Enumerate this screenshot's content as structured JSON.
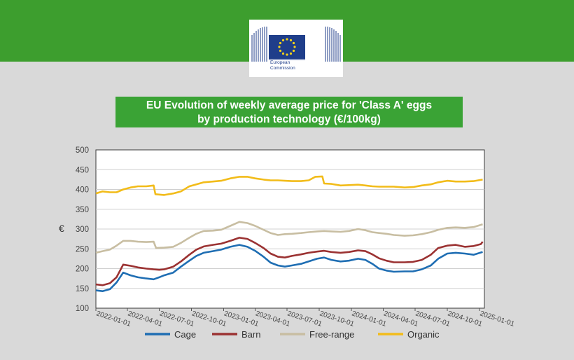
{
  "logo": {
    "line1": "European",
    "line2": "Commission"
  },
  "chart_data": {
    "type": "line",
    "title_line1": "EU Evolution of weekly average price for 'Class A' eggs",
    "title_line2": "by production technology (€/100kg)",
    "ylabel": "€",
    "ylim": [
      100,
      500
    ],
    "yticks": [
      100,
      150,
      200,
      250,
      300,
      350,
      400,
      450,
      500
    ],
    "xlim": [
      "2022-01-01",
      "2025-01-15"
    ],
    "xticks": [
      "2022-01-01",
      "2022-04-01",
      "2022-07-01",
      "2022-10-01",
      "2023-01-01",
      "2023-04-01",
      "2023-07-01",
      "2023-10-01",
      "2024-01-01",
      "2024-04-01",
      "2024-07-01",
      "2024-10-01",
      "2025-01-01"
    ],
    "grid": "horizontal",
    "legend_position": "bottom",
    "series": [
      {
        "name": "Cage",
        "color": "#1f6eb3",
        "points": [
          [
            "2022-01-01",
            145
          ],
          [
            "2022-01-20",
            143
          ],
          [
            "2022-02-10",
            148
          ],
          [
            "2022-03-01",
            165
          ],
          [
            "2022-03-20",
            190
          ],
          [
            "2022-04-10",
            183
          ],
          [
            "2022-05-01",
            178
          ],
          [
            "2022-05-25",
            175
          ],
          [
            "2022-06-15",
            173
          ],
          [
            "2022-07-01",
            178
          ],
          [
            "2022-07-15",
            183
          ],
          [
            "2022-08-10",
            190
          ],
          [
            "2022-09-01",
            205
          ],
          [
            "2022-09-25",
            220
          ],
          [
            "2022-10-15",
            232
          ],
          [
            "2022-11-05",
            240
          ],
          [
            "2022-12-01",
            244
          ],
          [
            "2022-12-25",
            248
          ],
          [
            "2023-01-20",
            255
          ],
          [
            "2023-02-15",
            260
          ],
          [
            "2023-03-10",
            255
          ],
          [
            "2023-04-01",
            245
          ],
          [
            "2023-04-25",
            230
          ],
          [
            "2023-05-15",
            215
          ],
          [
            "2023-06-05",
            208
          ],
          [
            "2023-06-25",
            205
          ],
          [
            "2023-07-15",
            208
          ],
          [
            "2023-08-10",
            212
          ],
          [
            "2023-09-01",
            218
          ],
          [
            "2023-09-25",
            225
          ],
          [
            "2023-10-15",
            228
          ],
          [
            "2023-11-05",
            222
          ],
          [
            "2023-12-01",
            218
          ],
          [
            "2023-12-25",
            220
          ],
          [
            "2024-01-20",
            225
          ],
          [
            "2024-02-10",
            222
          ],
          [
            "2024-03-01",
            212
          ],
          [
            "2024-03-20",
            200
          ],
          [
            "2024-04-10",
            195
          ],
          [
            "2024-05-01",
            192
          ],
          [
            "2024-06-01",
            193
          ],
          [
            "2024-06-25",
            193
          ],
          [
            "2024-07-20",
            198
          ],
          [
            "2024-08-15",
            208
          ],
          [
            "2024-09-05",
            225
          ],
          [
            "2024-10-01",
            238
          ],
          [
            "2024-10-25",
            240
          ],
          [
            "2024-11-20",
            238
          ],
          [
            "2024-12-15",
            235
          ],
          [
            "2025-01-10",
            242
          ]
        ]
      },
      {
        "name": "Barn",
        "color": "#9b3232",
        "points": [
          [
            "2022-01-01",
            160
          ],
          [
            "2022-01-20",
            158
          ],
          [
            "2022-02-10",
            163
          ],
          [
            "2022-03-01",
            178
          ],
          [
            "2022-03-20",
            210
          ],
          [
            "2022-04-10",
            207
          ],
          [
            "2022-05-01",
            203
          ],
          [
            "2022-05-25",
            200
          ],
          [
            "2022-06-15",
            198
          ],
          [
            "2022-07-01",
            197
          ],
          [
            "2022-07-15",
            198
          ],
          [
            "2022-08-10",
            205
          ],
          [
            "2022-09-01",
            218
          ],
          [
            "2022-09-25",
            235
          ],
          [
            "2022-10-15",
            248
          ],
          [
            "2022-11-05",
            256
          ],
          [
            "2022-12-01",
            260
          ],
          [
            "2022-12-25",
            263
          ],
          [
            "2023-01-20",
            270
          ],
          [
            "2023-02-15",
            278
          ],
          [
            "2023-03-10",
            275
          ],
          [
            "2023-04-01",
            265
          ],
          [
            "2023-04-25",
            252
          ],
          [
            "2023-05-15",
            238
          ],
          [
            "2023-06-05",
            230
          ],
          [
            "2023-06-25",
            228
          ],
          [
            "2023-07-15",
            232
          ],
          [
            "2023-08-10",
            236
          ],
          [
            "2023-09-01",
            240
          ],
          [
            "2023-09-25",
            243
          ],
          [
            "2023-10-15",
            245
          ],
          [
            "2023-11-05",
            242
          ],
          [
            "2023-12-01",
            240
          ],
          [
            "2023-12-25",
            242
          ],
          [
            "2024-01-20",
            246
          ],
          [
            "2024-02-10",
            244
          ],
          [
            "2024-03-01",
            236
          ],
          [
            "2024-03-20",
            226
          ],
          [
            "2024-04-10",
            220
          ],
          [
            "2024-05-01",
            216
          ],
          [
            "2024-06-01",
            216
          ],
          [
            "2024-06-25",
            217
          ],
          [
            "2024-07-20",
            222
          ],
          [
            "2024-08-15",
            235
          ],
          [
            "2024-09-05",
            252
          ],
          [
            "2024-10-01",
            258
          ],
          [
            "2024-10-25",
            260
          ],
          [
            "2024-11-20",
            255
          ],
          [
            "2024-12-15",
            257
          ],
          [
            "2025-01-05",
            262
          ],
          [
            "2025-01-10",
            268
          ]
        ]
      },
      {
        "name": "Free-range",
        "color": "#c8bea2",
        "points": [
          [
            "2022-01-01",
            240
          ],
          [
            "2022-01-20",
            244
          ],
          [
            "2022-02-10",
            248
          ],
          [
            "2022-03-01",
            258
          ],
          [
            "2022-03-20",
            270
          ],
          [
            "2022-04-10",
            270
          ],
          [
            "2022-05-01",
            268
          ],
          [
            "2022-05-25",
            267
          ],
          [
            "2022-06-15",
            268
          ],
          [
            "2022-06-22",
            252
          ],
          [
            "2022-07-15",
            253
          ],
          [
            "2022-08-10",
            255
          ],
          [
            "2022-09-01",
            265
          ],
          [
            "2022-09-25",
            278
          ],
          [
            "2022-10-15",
            288
          ],
          [
            "2022-11-05",
            295
          ],
          [
            "2022-12-01",
            296
          ],
          [
            "2022-12-25",
            298
          ],
          [
            "2023-01-20",
            308
          ],
          [
            "2023-02-15",
            318
          ],
          [
            "2023-03-10",
            315
          ],
          [
            "2023-04-01",
            308
          ],
          [
            "2023-04-25",
            298
          ],
          [
            "2023-05-15",
            290
          ],
          [
            "2023-06-05",
            285
          ],
          [
            "2023-06-25",
            287
          ],
          [
            "2023-07-15",
            288
          ],
          [
            "2023-08-10",
            290
          ],
          [
            "2023-09-01",
            292
          ],
          [
            "2023-09-25",
            294
          ],
          [
            "2023-10-15",
            295
          ],
          [
            "2023-11-05",
            294
          ],
          [
            "2023-12-01",
            293
          ],
          [
            "2023-12-25",
            295
          ],
          [
            "2024-01-20",
            300
          ],
          [
            "2024-02-10",
            297
          ],
          [
            "2024-03-01",
            292
          ],
          [
            "2024-03-20",
            290
          ],
          [
            "2024-04-10",
            288
          ],
          [
            "2024-05-01",
            285
          ],
          [
            "2024-06-01",
            283
          ],
          [
            "2024-06-25",
            284
          ],
          [
            "2024-07-20",
            287
          ],
          [
            "2024-08-15",
            292
          ],
          [
            "2024-09-05",
            298
          ],
          [
            "2024-10-01",
            303
          ],
          [
            "2024-10-25",
            304
          ],
          [
            "2024-11-20",
            303
          ],
          [
            "2024-12-15",
            305
          ],
          [
            "2025-01-10",
            312
          ]
        ]
      },
      {
        "name": "Organic",
        "color": "#f2bc1a",
        "points": [
          [
            "2022-01-01",
            390
          ],
          [
            "2022-01-20",
            395
          ],
          [
            "2022-02-10",
            393
          ],
          [
            "2022-03-01",
            393
          ],
          [
            "2022-03-20",
            400
          ],
          [
            "2022-04-10",
            405
          ],
          [
            "2022-05-01",
            408
          ],
          [
            "2022-05-25",
            408
          ],
          [
            "2022-06-15",
            410
          ],
          [
            "2022-06-20",
            388
          ],
          [
            "2022-07-15",
            386
          ],
          [
            "2022-08-10",
            390
          ],
          [
            "2022-09-01",
            395
          ],
          [
            "2022-09-25",
            408
          ],
          [
            "2022-10-15",
            413
          ],
          [
            "2022-11-05",
            418
          ],
          [
            "2022-12-01",
            420
          ],
          [
            "2022-12-25",
            422
          ],
          [
            "2023-01-20",
            428
          ],
          [
            "2023-02-15",
            432
          ],
          [
            "2023-03-10",
            432
          ],
          [
            "2023-04-01",
            428
          ],
          [
            "2023-04-25",
            425
          ],
          [
            "2023-05-15",
            423
          ],
          [
            "2023-06-05",
            423
          ],
          [
            "2023-06-25",
            422
          ],
          [
            "2023-07-15",
            421
          ],
          [
            "2023-08-10",
            421
          ],
          [
            "2023-09-01",
            423
          ],
          [
            "2023-09-20",
            432
          ],
          [
            "2023-10-10",
            433
          ],
          [
            "2023-10-15",
            415
          ],
          [
            "2023-11-05",
            414
          ],
          [
            "2023-12-01",
            410
          ],
          [
            "2023-12-25",
            411
          ],
          [
            "2024-01-20",
            412
          ],
          [
            "2024-02-10",
            410
          ],
          [
            "2024-03-01",
            408
          ],
          [
            "2024-03-20",
            407
          ],
          [
            "2024-04-10",
            407
          ],
          [
            "2024-05-01",
            407
          ],
          [
            "2024-06-01",
            405
          ],
          [
            "2024-06-25",
            406
          ],
          [
            "2024-07-20",
            410
          ],
          [
            "2024-08-15",
            413
          ],
          [
            "2024-09-05",
            418
          ],
          [
            "2024-10-01",
            422
          ],
          [
            "2024-10-25",
            420
          ],
          [
            "2024-11-20",
            420
          ],
          [
            "2024-12-15",
            421
          ],
          [
            "2025-01-10",
            425
          ]
        ]
      }
    ]
  }
}
